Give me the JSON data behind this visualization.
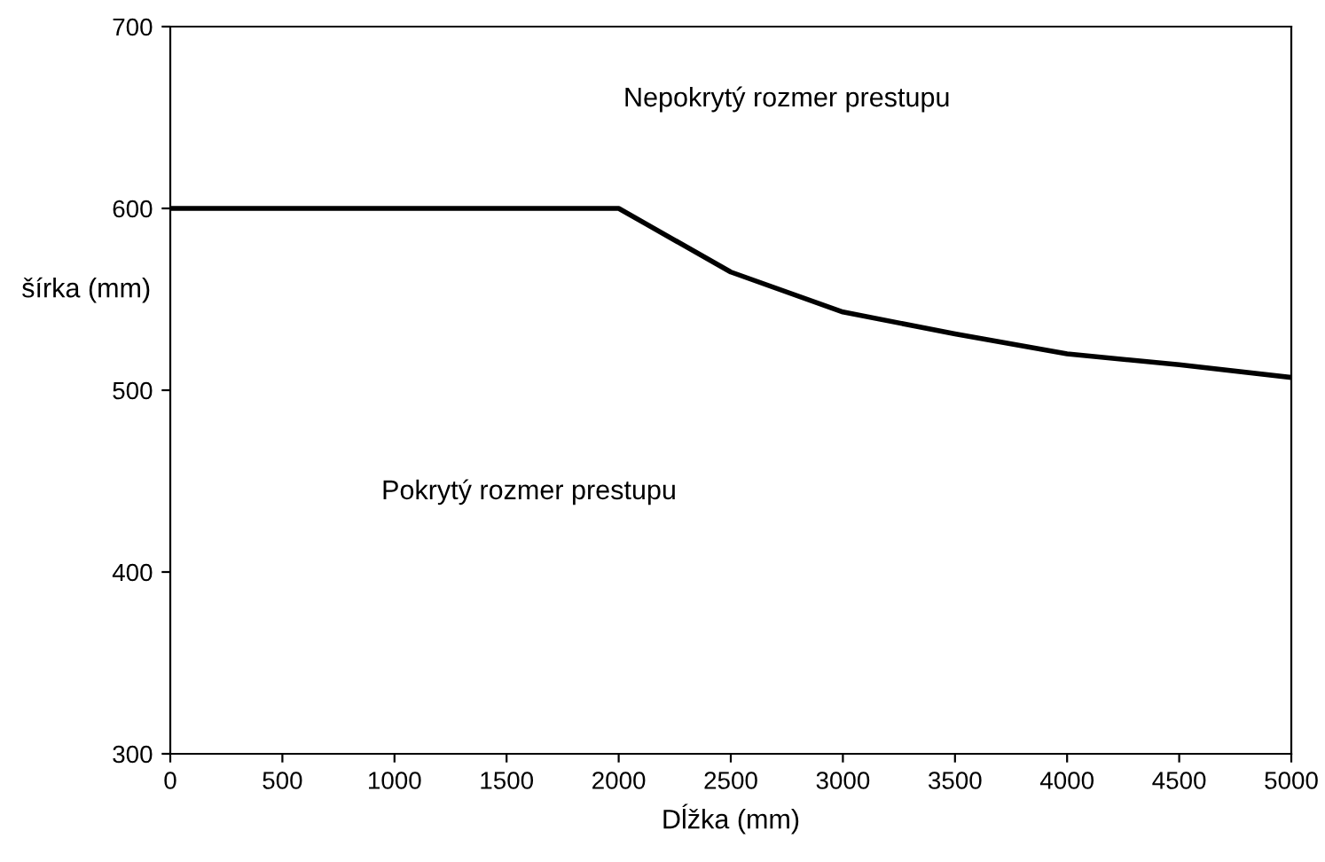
{
  "chart_data": {
    "type": "line",
    "xlabel": "Dĺžka (mm)",
    "ylabel": "šírka (mm)",
    "x": [
      0,
      2000,
      2500,
      3000,
      3500,
      4000,
      4500,
      5000
    ],
    "series": [
      {
        "color": "#000000",
        "values": [
          600,
          600,
          565,
          543,
          531,
          520,
          514,
          507
        ]
      }
    ],
    "xlim": [
      0,
      5000
    ],
    "xticks": [
      0,
      500,
      1000,
      1500,
      2000,
      2500,
      3000,
      3500,
      4000,
      4500,
      5000
    ],
    "ylim": [
      300,
      700
    ],
    "yticks": [
      300,
      400,
      500,
      600,
      700
    ],
    "annotations": [
      "Nepokrytý rozmer prestupu",
      "Pokrytý rozmer prestupu"
    ],
    "grid": false,
    "legend": false,
    "marker": "none",
    "line_style": "solid"
  }
}
